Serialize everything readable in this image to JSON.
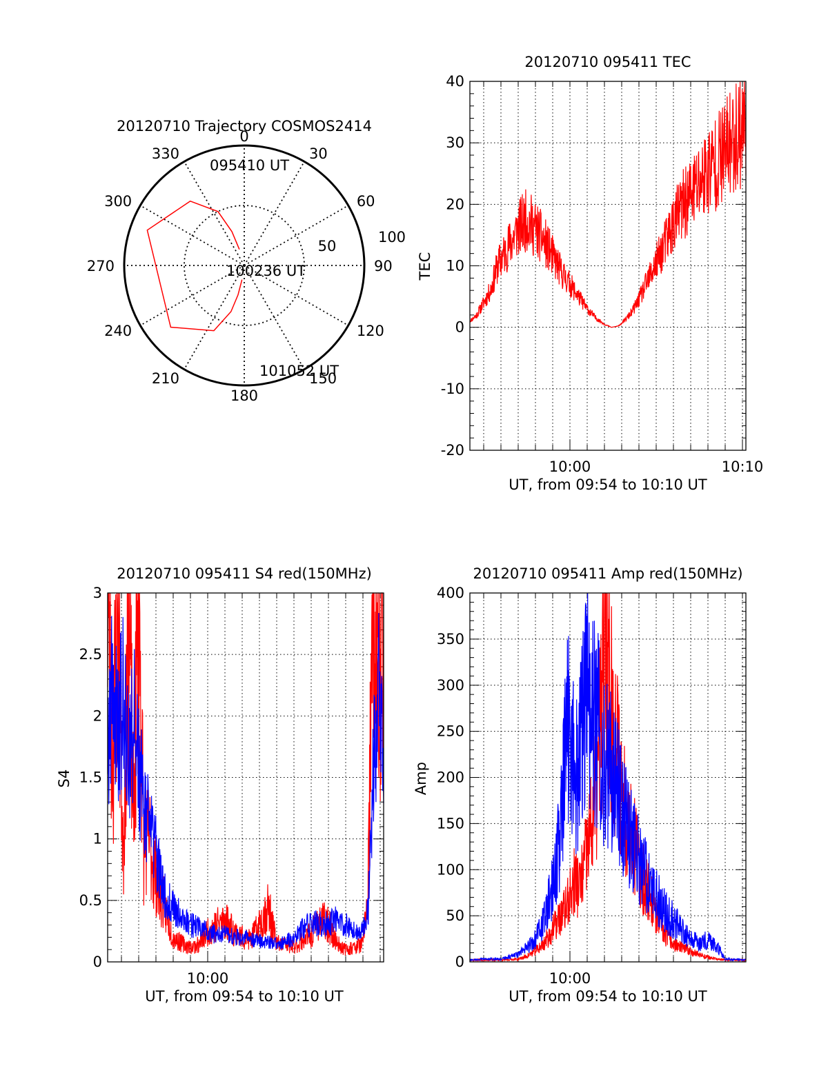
{
  "figure": {
    "colors": {
      "red": "#ff0000",
      "blue": "#0000ff",
      "axes": "#000000"
    }
  },
  "chart_data": [
    {
      "id": "trajectory",
      "type": "polar",
      "title": "20120710 Trajectory COSMOS2414",
      "azimuth_labels": [
        "0",
        "30",
        "60",
        "90",
        "120",
        "150",
        "180",
        "210",
        "240",
        "270",
        "300",
        "330"
      ],
      "radius_labels": [
        "50",
        "100"
      ],
      "annotations": [
        "095410 UT",
        "100236 UT",
        "101052 UT"
      ],
      "series": [
        {
          "color": "#ff0000",
          "points_az_el": [
            [
              343,
              14
            ],
            [
              340,
              30
            ],
            [
              334,
              50
            ],
            [
              320,
              70
            ],
            [
              290,
              86
            ],
            [
              230,
              80
            ],
            [
              205,
              60
            ],
            [
              196,
              40
            ],
            [
              192,
              25
            ],
            [
              189,
              12
            ]
          ]
        }
      ]
    },
    {
      "id": "tec",
      "type": "line",
      "title": "20120710 095411 TEC",
      "xlabel": "UT, from 09:54 to 10:10 UT",
      "ylabel": "TEC",
      "xlim": [
        594.2,
        610.2
      ],
      "ylim": [
        -20,
        40
      ],
      "x_tick_labels": [
        "10:00",
        "10:10"
      ],
      "y_tick_labels": [
        "-20",
        "-10",
        "0",
        "10",
        "20",
        "30",
        "40"
      ],
      "grid": true,
      "series": [
        {
          "color": "#ff0000",
          "x": [
            594.2,
            594.6,
            595.0,
            595.4,
            595.8,
            596.2,
            596.6,
            597.0,
            597.5,
            598.0,
            598.5,
            599.0,
            599.5,
            600.0,
            600.5,
            601.0,
            601.5,
            602.0,
            602.4,
            602.8,
            603.2,
            603.6,
            604.0,
            604.5,
            605.0,
            605.5,
            606.0,
            606.5,
            607.0,
            607.5,
            608.0,
            608.5,
            609.0,
            609.3,
            609.6,
            610.0,
            610.2
          ],
          "y": [
            1,
            2,
            4,
            6,
            10,
            12,
            14,
            16,
            17.5,
            16,
            14,
            11.5,
            9,
            7,
            5,
            3,
            1.5,
            0.5,
            0,
            0.2,
            1.2,
            2.5,
            4.5,
            7.5,
            10.5,
            13.5,
            17,
            19.5,
            21.5,
            23.5,
            25.5,
            27,
            28.5,
            30,
            31,
            32.5,
            34
          ]
        }
      ]
    },
    {
      "id": "s4",
      "type": "line",
      "title": "20120710 095411 S4 red(150MHz)",
      "xlabel": "UT, from 09:54 to 10:10 UT",
      "ylabel": "S4",
      "xlim": [
        594.2,
        610.2
      ],
      "ylim": [
        0,
        3
      ],
      "x_tick_labels": [
        "10:00"
      ],
      "y_tick_labels": [
        "0",
        "0.5",
        "1",
        "1.5",
        "2",
        "2.5",
        "3"
      ],
      "grid": true,
      "series": [
        {
          "color": "#ff0000",
          "x": [
            594.2,
            594.5,
            594.8,
            595.1,
            595.4,
            595.7,
            596.0,
            596.3,
            596.6,
            597.0,
            597.5,
            598.0,
            598.5,
            599.0,
            599.5,
            600.0,
            600.5,
            601.0,
            601.5,
            602.0,
            602.5,
            603.0,
            603.5,
            604.0,
            604.5,
            605.0,
            605.5,
            606.0,
            606.5,
            607.0,
            607.5,
            608.0,
            608.5,
            609.0,
            609.3,
            609.6,
            609.9,
            610.2
          ],
          "y": [
            3,
            1.6,
            3,
            0.8,
            3,
            1.2,
            3,
            0.9,
            1.0,
            0.7,
            0.45,
            0.2,
            0.15,
            0.12,
            0.14,
            0.25,
            0.3,
            0.35,
            0.25,
            0.2,
            0.18,
            0.3,
            0.45,
            0.15,
            0.14,
            0.12,
            0.18,
            0.22,
            0.35,
            0.3,
            0.15,
            0.1,
            0.12,
            0.15,
            0.6,
            3,
            2.2,
            3
          ]
        },
        {
          "color": "#0000ff",
          "x": [
            594.2,
            594.5,
            594.8,
            595.1,
            595.4,
            595.7,
            596.0,
            596.3,
            596.6,
            597.0,
            597.5,
            598.0,
            598.5,
            599.0,
            599.5,
            600.0,
            600.5,
            601.0,
            601.5,
            602.0,
            602.5,
            603.0,
            603.5,
            604.0,
            604.5,
            605.0,
            605.5,
            606.0,
            606.5,
            607.0,
            607.5,
            608.0,
            608.5,
            609.0,
            609.3,
            609.6,
            609.9,
            610.2
          ],
          "y": [
            1.8,
            2.3,
            1.9,
            2.1,
            1.7,
            2.0,
            1.6,
            1.3,
            1.1,
            0.9,
            0.55,
            0.45,
            0.35,
            0.3,
            0.28,
            0.25,
            0.22,
            0.22,
            0.2,
            0.2,
            0.18,
            0.17,
            0.16,
            0.15,
            0.16,
            0.2,
            0.28,
            0.3,
            0.32,
            0.3,
            0.35,
            0.3,
            0.28,
            0.25,
            0.4,
            1.5,
            2.4,
            1.4
          ]
        }
      ]
    },
    {
      "id": "amp",
      "type": "line",
      "title": "20120710 095411 Amp red(150MHz)",
      "xlabel": "UT, from 09:54 to 10:10 UT",
      "ylabel": "Amp",
      "xlim": [
        594.2,
        610.2
      ],
      "ylim": [
        0,
        400
      ],
      "x_tick_labels": [
        "10:00"
      ],
      "y_tick_labels": [
        "0",
        "50",
        "100",
        "150",
        "200",
        "250",
        "300",
        "350",
        "400"
      ],
      "grid": true,
      "series": [
        {
          "color": "#ff0000",
          "x": [
            594.2,
            595.0,
            596.0,
            597.0,
            597.5,
            598.0,
            598.5,
            599.0,
            599.5,
            599.8,
            600.0,
            600.3,
            600.6,
            601.0,
            601.3,
            601.6,
            601.9,
            602.2,
            602.5,
            602.8,
            603.0,
            603.3,
            603.6,
            604.0,
            604.5,
            605.0,
            605.5,
            606.0,
            606.5,
            607.0,
            607.5,
            608.0,
            608.5,
            609.0,
            610.2
          ],
          "y": [
            2,
            2,
            2,
            3,
            6,
            12,
            20,
            35,
            50,
            60,
            70,
            90,
            80,
            120,
            150,
            200,
            300,
            340,
            250,
            220,
            180,
            160,
            140,
            100,
            80,
            50,
            30,
            20,
            15,
            12,
            8,
            5,
            3,
            2,
            2
          ]
        },
        {
          "color": "#0000ff",
          "x": [
            594.2,
            595.0,
            596.0,
            597.0,
            597.5,
            598.0,
            598.5,
            599.0,
            599.5,
            599.8,
            600.0,
            600.3,
            600.6,
            601.0,
            601.3,
            601.6,
            601.9,
            602.2,
            602.5,
            602.8,
            603.0,
            603.3,
            603.6,
            604.0,
            604.5,
            605.0,
            605.5,
            606.0,
            606.5,
            607.0,
            607.5,
            608.0,
            608.5,
            609.0,
            610.2
          ],
          "y": [
            2,
            3,
            3,
            8,
            15,
            25,
            45,
            80,
            150,
            240,
            285,
            190,
            230,
            300,
            260,
            250,
            230,
            210,
            200,
            190,
            170,
            150,
            130,
            110,
            90,
            70,
            55,
            45,
            35,
            25,
            20,
            25,
            18,
            3,
            2
          ]
        }
      ]
    }
  ]
}
